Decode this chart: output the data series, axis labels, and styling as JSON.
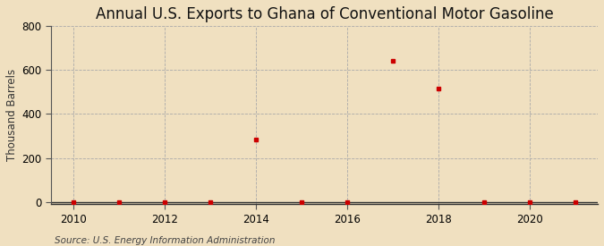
{
  "title": "Annual U.S. Exports to Ghana of Conventional Motor Gasoline",
  "ylabel": "Thousand Barrels",
  "source": "Source: U.S. Energy Information Administration",
  "background_color": "#f0e0c0",
  "plot_bg_color": "#f0e0c0",
  "xlim": [
    2009.5,
    2021.5
  ],
  "ylim": [
    -10,
    800
  ],
  "yticks": [
    0,
    200,
    400,
    600,
    800
  ],
  "xticks": [
    2010,
    2012,
    2014,
    2016,
    2018,
    2020
  ],
  "years": [
    2010,
    2011,
    2012,
    2013,
    2014,
    2015,
    2016,
    2017,
    2018,
    2019,
    2020,
    2021
  ],
  "values": [
    0,
    0,
    0,
    0,
    282,
    0,
    0,
    641,
    515,
    0,
    0,
    0
  ],
  "marker_color": "#cc0000",
  "marker_size": 3.5,
  "grid_color": "#aaaaaa",
  "grid_linestyle": "--",
  "title_fontsize": 12,
  "label_fontsize": 8.5,
  "tick_fontsize": 8.5,
  "source_fontsize": 7.5
}
